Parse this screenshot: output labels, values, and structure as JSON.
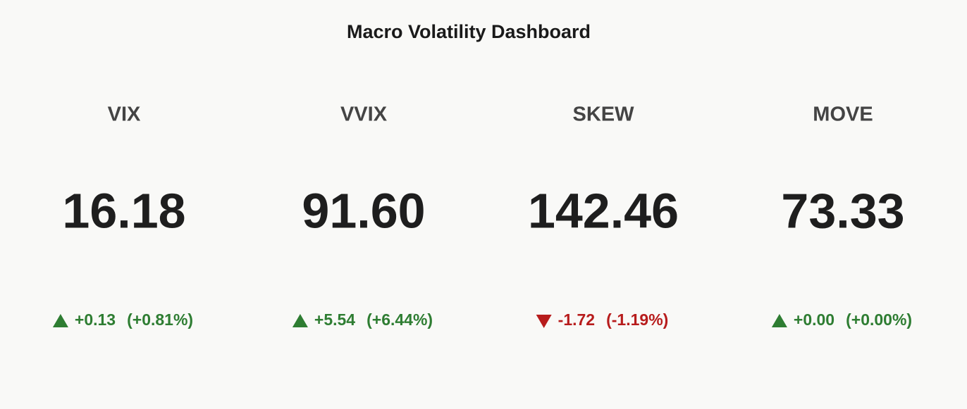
{
  "chart_data": {
    "type": "indicator",
    "title": "Macro Volatility Dashboard",
    "increasing_color": "#2e7d32",
    "decreasing_color": "#b71c1c",
    "indicators": [
      {
        "name": "VIX",
        "value": 16.18,
        "delta": 0.13,
        "delta_label": "+0.13",
        "delta_pct": 0.81,
        "delta_pct_label": "(+0.81%)"
      },
      {
        "name": "VVIX",
        "value": 91.6,
        "value_label": "91.60",
        "delta": 5.54,
        "delta_label": "+5.54",
        "delta_pct": 6.44,
        "delta_pct_label": "(+6.44%)"
      },
      {
        "name": "SKEW",
        "value": 142.46,
        "delta": -1.72,
        "delta_label": "-1.72",
        "delta_pct": -1.19,
        "delta_pct_label": "(-1.19%)"
      },
      {
        "name": "MOVE",
        "value": 73.33,
        "delta": 0,
        "delta_label": "+0.00",
        "delta_pct": 0,
        "delta_pct_label": "(+0.00%)"
      }
    ]
  }
}
